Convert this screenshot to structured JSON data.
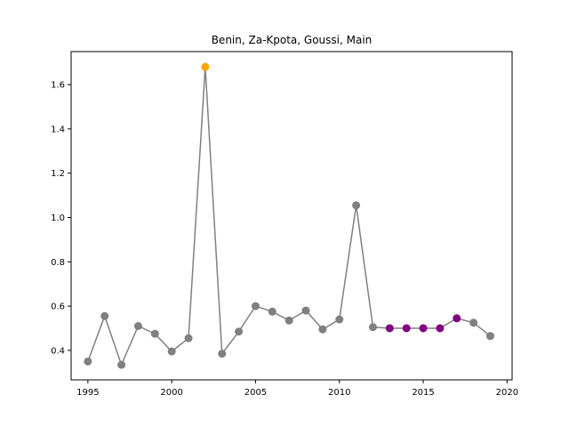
{
  "chart_data": {
    "type": "line",
    "title": "Benin, Za-Kpota, Goussi, Main",
    "xlabel": "",
    "ylabel": "",
    "xlim": [
      1994,
      2020.3
    ],
    "ylim": [
      0.267,
      1.749
    ],
    "xticks": [
      1995,
      2000,
      2005,
      2010,
      2015,
      2020
    ],
    "yticks": [
      0.4,
      0.6,
      0.8,
      1.0,
      1.2,
      1.4,
      1.6
    ],
    "ytick_labels": [
      "0.4",
      "0.6",
      "0.8",
      "1.0",
      "1.2",
      "1.4",
      "1.6"
    ],
    "grid": false,
    "line_color": "#808080",
    "x": [
      1995,
      1996,
      1997,
      1998,
      1999,
      2000,
      2001,
      2002,
      2003,
      2004,
      2005,
      2006,
      2007,
      2008,
      2009,
      2010,
      2011,
      2012,
      2013,
      2014,
      2015,
      2016,
      2017,
      2018,
      2019
    ],
    "y": [
      0.35,
      0.555,
      0.335,
      0.51,
      0.475,
      0.395,
      0.455,
      1.68,
      0.385,
      0.485,
      0.6,
      0.575,
      0.535,
      0.58,
      0.495,
      0.54,
      1.055,
      0.505,
      0.5,
      0.5,
      0.5,
      0.5,
      0.545,
      0.525,
      0.465
    ],
    "point_colors": [
      "#808080",
      "#808080",
      "#808080",
      "#808080",
      "#808080",
      "#808080",
      "#808080",
      "#ffa500",
      "#808080",
      "#808080",
      "#808080",
      "#808080",
      "#808080",
      "#808080",
      "#808080",
      "#808080",
      "#808080",
      "#808080",
      "#800080",
      "#800080",
      "#800080",
      "#800080",
      "#800080",
      "#808080",
      "#808080"
    ]
  }
}
